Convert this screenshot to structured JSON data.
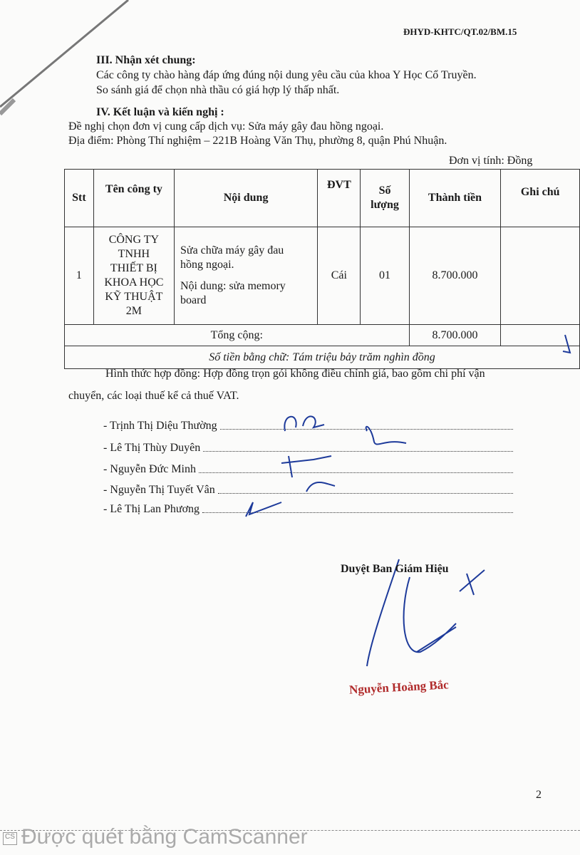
{
  "doc_code": "ĐHYD-KHTC/QT.02/BM.15",
  "section3": {
    "title": "III. Nhận xét chung:",
    "lines": [
      "Các công ty chào hàng đáp ứng đúng nội dung yêu cầu của khoa Y Học Cổ Truyền.",
      "So sánh giá để chọn nhà thầu có giá hợp lý thấp nhất."
    ]
  },
  "section4": {
    "title": "IV.  Kết luận và kiến nghị :",
    "lines": [
      "Đề nghị chọn đơn vị cung cấp dịch vụ: Sửa máy gây đau hồng ngoại.",
      "Địa điểm: Phòng Thí nghiệm – 221B Hoàng Văn Thụ, phường 8, quận Phú Nhuận."
    ]
  },
  "unit": "Đơn vị tính: Đồng",
  "table": {
    "headers": [
      "Stt",
      "Tên công ty",
      "Nội dung",
      "ĐVT",
      "Số lượng",
      "Thành tiền",
      "Ghi chú"
    ],
    "rows": [
      {
        "stt": "1",
        "company": "CÔNG TY TNHH THIẾT BỊ KHOA HỌC KỸ THUẬT 2M",
        "content1": "Sửa chữa máy gây đau hồng ngoại.",
        "content2": "Nội dung: sửa memory board",
        "unit": "Cái",
        "qty": "01",
        "amount": "8.700.000",
        "note": ""
      }
    ],
    "total_label": "Tổng cộng:",
    "total": "8.700.000",
    "in_words": "Số tiền bằng chữ: Tám triệu bảy trăm nghìn đồng"
  },
  "contract": [
    "Hình thức hợp đồng: Hợp đồng trọn gói không điều chỉnh giá, bao gồm chi phí vận",
    "chuyển, các loại thuế kể cả thuế VAT."
  ],
  "members": [
    "- Trịnh Thị Diệu Thường",
    "- Lê Thị Thùy Duyên",
    "- Nguyễn Đức Minh",
    "- Nguyễn Thị Tuyết Vân",
    "- Lê Thị Lan Phương"
  ],
  "approval": {
    "title": "Duyệt Ban Giám Hiệu",
    "name": "Nguyễn Hoàng Bắc",
    "name_color": "#b02a2a",
    "ink_color": "#1d3a9a"
  },
  "page_number": "2",
  "watermark": "Được quét bằng CamScanner"
}
